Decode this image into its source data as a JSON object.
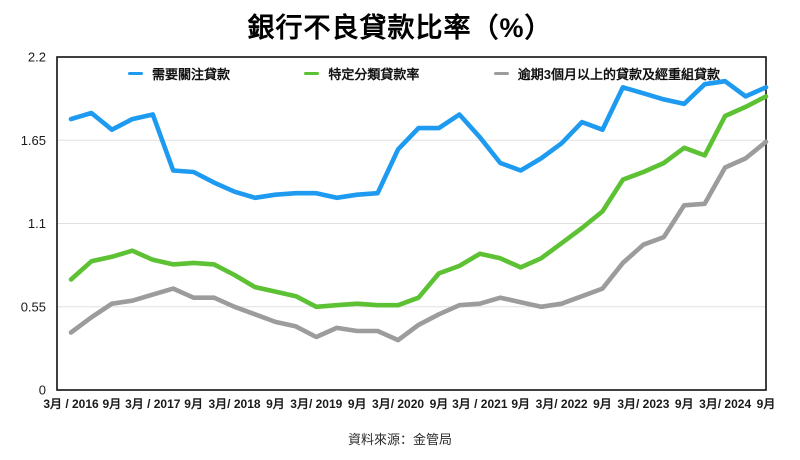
{
  "title": "銀行不良貸款比率（%）",
  "source": "資料來源：金管局",
  "chart_data": {
    "type": "line",
    "title": "銀行不良貸款比率（%）",
    "ylim": [
      0,
      2.2
    ],
    "y_ticks": [
      0,
      0.55,
      1.1,
      1.65,
      2.2
    ],
    "y_tick_labels": [
      "0",
      "0.55",
      "1.1",
      "1.65",
      "2.2"
    ],
    "x_tick_labels": [
      "3月 / 2016",
      "9月",
      "3月 / 2017",
      "9月",
      "3月/ 2018",
      "9月",
      "3月/ 2019",
      "9月",
      "3月/ 2020",
      "9月",
      "3月 / 2021",
      "9月",
      "3月/ 2022",
      "9月",
      "3月/ 2023",
      "9月",
      "3月/ 2024",
      "9月"
    ],
    "points_per_x_tick": 2,
    "grid": "horizontal",
    "legend_position": "top",
    "series": [
      {
        "id": "special-mention-loans",
        "name": "需要關注貸款",
        "color": "#1E9BF0",
        "values": [
          1.79,
          1.83,
          1.72,
          1.79,
          1.82,
          1.45,
          1.44,
          1.37,
          1.31,
          1.27,
          1.29,
          1.3,
          1.3,
          1.27,
          1.29,
          1.3,
          1.59,
          1.73,
          1.73,
          1.82,
          1.67,
          1.5,
          1.45,
          1.53,
          1.63,
          1.77,
          1.72,
          2.0,
          1.96,
          1.92,
          1.89,
          2.02,
          2.04,
          1.94,
          2.0
        ]
      },
      {
        "id": "classified-loans",
        "name": "特定分類貸款率",
        "color": "#5CC234",
        "values": [
          0.73,
          0.85,
          0.88,
          0.92,
          0.86,
          0.83,
          0.84,
          0.83,
          0.76,
          0.68,
          0.65,
          0.62,
          0.55,
          0.56,
          0.57,
          0.56,
          0.56,
          0.61,
          0.77,
          0.82,
          0.9,
          0.87,
          0.81,
          0.87,
          0.97,
          1.07,
          1.18,
          1.39,
          1.44,
          1.5,
          1.6,
          1.55,
          1.81,
          1.87,
          1.94
        ]
      },
      {
        "id": "overdue-3m-rescheduled-loans",
        "name": "逾期3個月以上的貸款及經重組貸款",
        "color": "#9C9C9C",
        "values": [
          0.38,
          0.48,
          0.57,
          0.59,
          0.63,
          0.67,
          0.61,
          0.61,
          0.55,
          0.5,
          0.45,
          0.42,
          0.35,
          0.41,
          0.39,
          0.39,
          0.33,
          0.43,
          0.5,
          0.56,
          0.57,
          0.61,
          0.58,
          0.55,
          0.57,
          0.62,
          0.67,
          0.84,
          0.96,
          1.01,
          1.22,
          1.23,
          1.47,
          1.53,
          1.64
        ]
      }
    ]
  }
}
